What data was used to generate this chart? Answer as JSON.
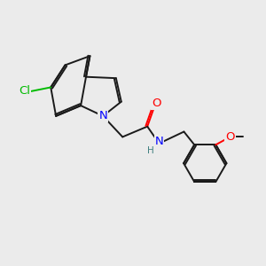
{
  "bg_color": "#ebebeb",
  "bond_color": "#1a1a1a",
  "N_color": "#0000ff",
  "O_color": "#ff0000",
  "Cl_color": "#00bb00",
  "H_color": "#408080",
  "line_width": 1.4,
  "font_size": 9.5,
  "small_font_size": 7.5,
  "figsize": [
    3.0,
    3.0
  ],
  "dpi": 100,
  "xlim": [
    0,
    10
  ],
  "ylim": [
    0,
    10
  ]
}
